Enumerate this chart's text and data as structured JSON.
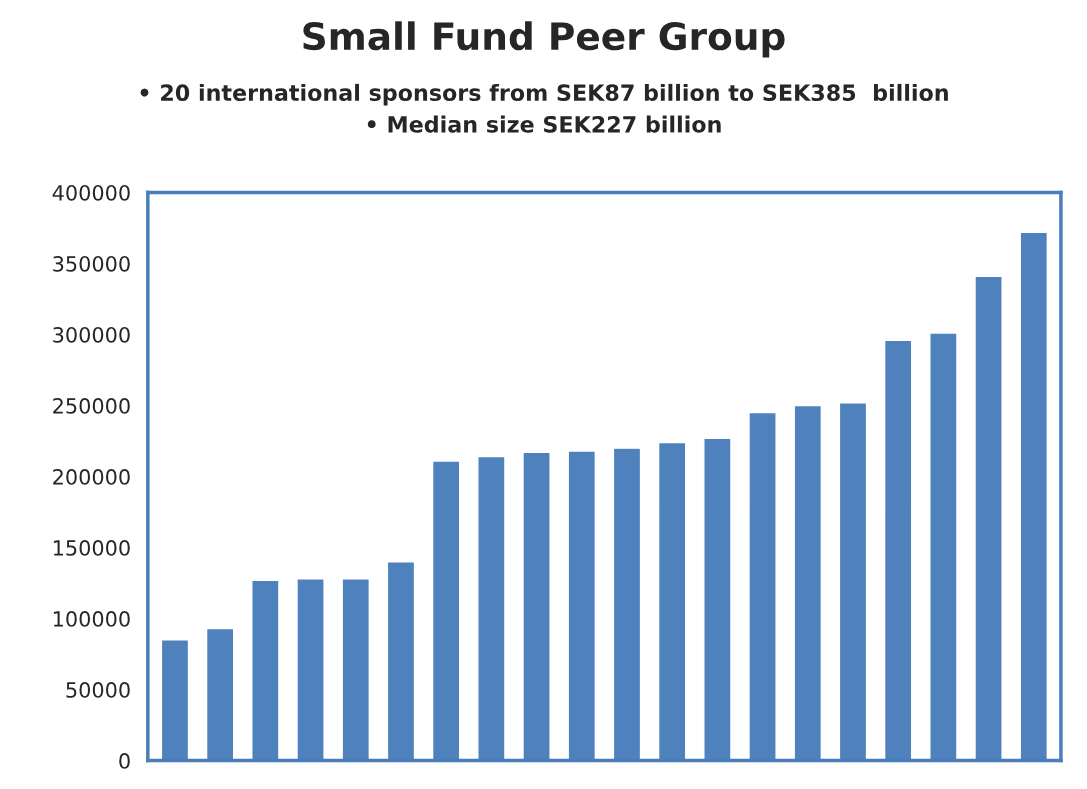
{
  "chart_data": {
    "type": "bar",
    "title": "Small Fund Peer Group",
    "subtitle": "• 20 international sponsors from SEK87 billion to SEK385  billion\n• Median size SEK227 billion",
    "categories": [
      null,
      null,
      null,
      null,
      null,
      null,
      null,
      null,
      null,
      null,
      null,
      null,
      null,
      null,
      null,
      null,
      null,
      null,
      null,
      null
    ],
    "values": [
      85000,
      93000,
      127000,
      128000,
      128000,
      140000,
      211000,
      214000,
      217000,
      218000,
      220000,
      224000,
      227000,
      245000,
      250000,
      252000,
      296000,
      301000,
      341000,
      372000
    ],
    "color": "#4f81bd",
    "ylim": [
      0,
      400000
    ],
    "yticks": [
      0,
      50000,
      100000,
      150000,
      200000,
      250000,
      300000,
      350000,
      400000
    ],
    "grid": false,
    "tick_labels": "y"
  }
}
